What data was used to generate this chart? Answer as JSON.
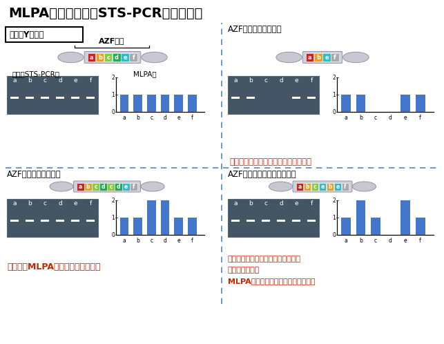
{
  "title": "MLPA法と従来法（STS-PCR法）の比較",
  "bg_color": "#ffffff",
  "top_left_title": "正常なY染色体",
  "top_left_azf": "AZF領域",
  "top_left_gel_label": "従来のSTS-PCR法",
  "top_left_mlpa_label": "MLPA法",
  "top_left_chr_colors": [
    "#cc2222",
    "#e8a020",
    "#88cc44",
    "#22aa55",
    "#33bbcc",
    "#aaaaaa"
  ],
  "top_left_chr_letters": [
    "a",
    "b",
    "c",
    "d",
    "e",
    "f"
  ],
  "top_left_gel_bands": [
    1,
    1,
    1,
    1,
    1,
    1
  ],
  "top_left_mlpa": [
    1,
    1,
    1,
    1,
    1,
    1
  ],
  "top_right_title": "AZF領域の一部の欠失",
  "top_right_chr_colors": [
    "#cc2222",
    "#e8a020",
    "#33bbcc",
    "#aaaaaa"
  ],
  "top_right_chr_letters": [
    "a",
    "b",
    "e",
    "f"
  ],
  "top_right_gel_bands": [
    1,
    1,
    0,
    0,
    1,
    1
  ],
  "top_right_mlpa": [
    1,
    1,
    0,
    0,
    1,
    1
  ],
  "top_right_note": "欠失は、どちらの方法でも同定できる",
  "bottom_left_title": "AZF領域の一部の重複",
  "bottom_left_chr_colors": [
    "#cc2222",
    "#e8a020",
    "#88cc44",
    "#22aa55",
    "#88cc44",
    "#22aa55",
    "#33bbcc",
    "#aaaaaa"
  ],
  "bottom_left_chr_letters": [
    "a",
    "b",
    "c",
    "d",
    "c",
    "d",
    "e",
    "f"
  ],
  "bottom_left_gel_bands": [
    1,
    1,
    1,
    1,
    1,
    1
  ],
  "bottom_left_mlpa": [
    1,
    1,
    2,
    2,
    1,
    1
  ],
  "bottom_left_note": "重複は、MLPA法でのみ同定できる",
  "bottom_right_title": "AZF領域の複雑な構造の変化",
  "bottom_right_chr_colors": [
    "#cc2222",
    "#e8a020",
    "#88cc44",
    "#33bbcc",
    "#e8a020",
    "#33bbcc",
    "#aaaaaa"
  ],
  "bottom_right_chr_letters": [
    "a",
    "b",
    "c",
    "e",
    "b",
    "e",
    "f"
  ],
  "bottom_right_gel_bands": [
    1,
    1,
    1,
    1,
    1,
    1
  ],
  "bottom_right_mlpa": [
    1,
    2,
    1,
    0,
    2,
    1
  ],
  "bottom_right_note1": "従来法では、欠失と複雑構造変化の",
  "bottom_right_note2": "判別がつかない",
  "bottom_right_note3": "MLPA法は複雑構造変化を同定できる",
  "divider_color": "#5588bb",
  "bar_color": "#4477cc",
  "gel_bg": "#445566",
  "red_color": "#cc2200"
}
